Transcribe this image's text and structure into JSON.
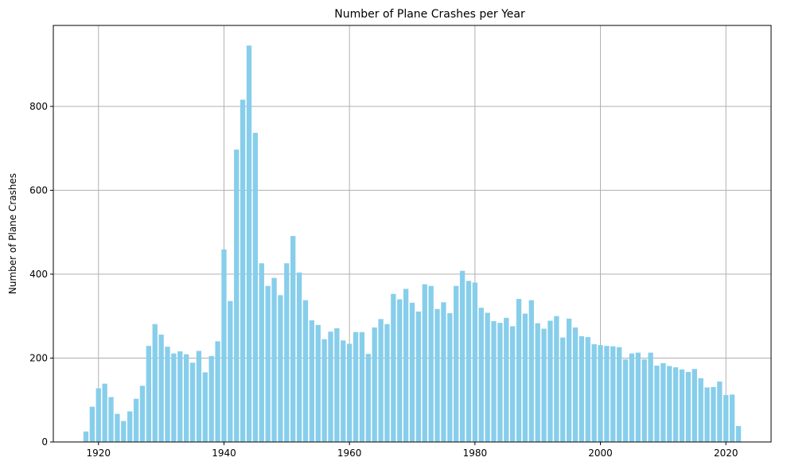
{
  "chart_data": {
    "type": "bar",
    "title": "Number of Plane Crashes per Year",
    "xlabel": "",
    "ylabel": "Number of Plane Crashes",
    "xlim": [
      1912.8,
      1927.2
    ],
    "ylim": [
      0,
      993
    ],
    "x_ticks": [
      1920,
      1940,
      1960,
      1980,
      2000,
      2020
    ],
    "y_ticks": [
      0,
      200,
      400,
      600,
      800
    ],
    "grid": true,
    "bar_color": "#87ceeb",
    "x": [
      1918,
      1919,
      1920,
      1921,
      1922,
      1923,
      1924,
      1925,
      1926,
      1927,
      1928,
      1929,
      1930,
      1931,
      1932,
      1933,
      1934,
      1935,
      1936,
      1937,
      1938,
      1939,
      1940,
      1941,
      1942,
      1943,
      1944,
      1945,
      1946,
      1947,
      1948,
      1949,
      1950,
      1951,
      1952,
      1953,
      1954,
      1955,
      1956,
      1957,
      1958,
      1959,
      1960,
      1961,
      1962,
      1963,
      1964,
      1965,
      1966,
      1967,
      1968,
      1969,
      1970,
      1971,
      1972,
      1973,
      1974,
      1975,
      1976,
      1977,
      1978,
      1979,
      1980,
      1981,
      1982,
      1983,
      1984,
      1985,
      1986,
      1987,
      1988,
      1989,
      1990,
      1991,
      1992,
      1993,
      1994,
      1995,
      1996,
      1997,
      1998,
      1999,
      2000,
      2001,
      2002,
      2003,
      2004,
      2005,
      2006,
      2007,
      2008,
      2009,
      2010,
      2011,
      2012,
      2013,
      2014,
      2015,
      2016,
      2017,
      2018,
      2019,
      2020,
      2021,
      2022
    ],
    "values": [
      25,
      84,
      128,
      139,
      107,
      67,
      50,
      73,
      103,
      134,
      229,
      281,
      256,
      227,
      211,
      216,
      209,
      189,
      217,
      166,
      205,
      240,
      459,
      336,
      697,
      816,
      945,
      737,
      426,
      372,
      391,
      350,
      426,
      491,
      404,
      338,
      290,
      279,
      245,
      263,
      271,
      242,
      234,
      262,
      262,
      210,
      273,
      293,
      281,
      353,
      340,
      365,
      332,
      311,
      376,
      372,
      317,
      333,
      307,
      372,
      408,
      384,
      380,
      320,
      308,
      288,
      284,
      296,
      276,
      341,
      306,
      338,
      283,
      270,
      289,
      300,
      249,
      294,
      273,
      252,
      250,
      233,
      231,
      229,
      228,
      226,
      197,
      211,
      213,
      197,
      213,
      182,
      188,
      181,
      178,
      173,
      167,
      174,
      152,
      130,
      131,
      144,
      112,
      113,
      38
    ]
  }
}
